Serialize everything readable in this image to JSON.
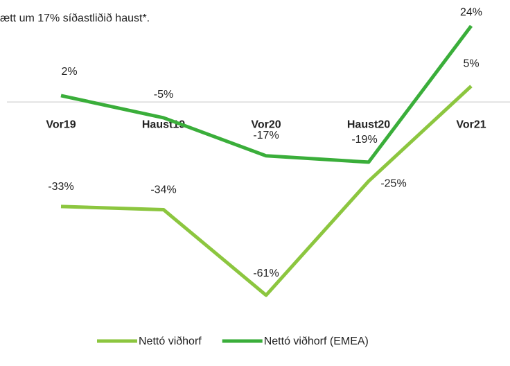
{
  "chart_data": {
    "type": "line",
    "subtitle": "ætt um 17% síðastliðið haust*.",
    "categories": [
      "Vor19",
      "Haust19",
      "Vor20",
      "Haust20",
      "Vor21"
    ],
    "series": [
      {
        "name": "Nettó viðhorf",
        "color": "#8cc63f",
        "values": [
          -33,
          -34,
          -61,
          -25,
          5
        ],
        "value_labels": [
          "-33%",
          "-34%",
          "-61%",
          "-25%",
          "5%"
        ]
      },
      {
        "name": "Nettó viðhorf (EMEA)",
        "color": "#3aae3a",
        "values": [
          2,
          -5,
          -17,
          -19,
          24
        ],
        "value_labels": [
          "2%",
          "-5%",
          "-17%",
          "-19%",
          "24%"
        ]
      }
    ],
    "ylim": [
      -70,
      30
    ],
    "legend": "bottom"
  }
}
